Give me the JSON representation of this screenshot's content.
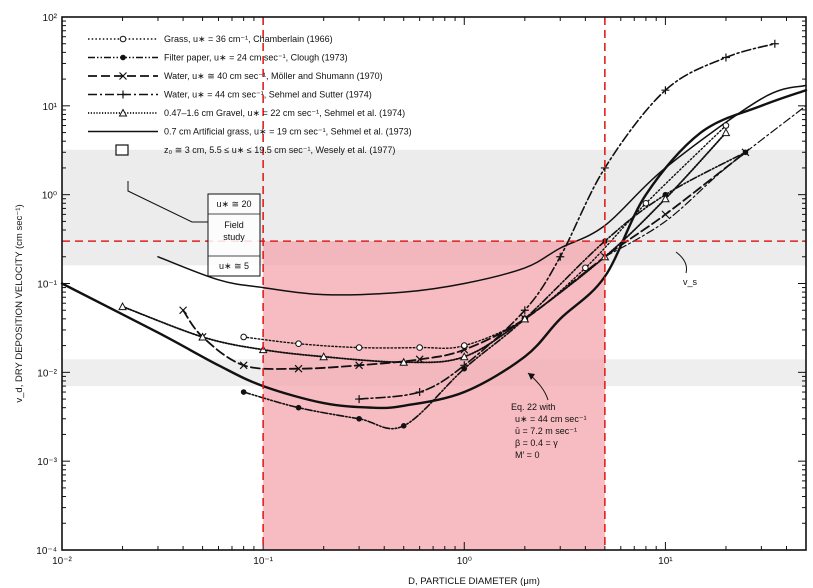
{
  "chart_data": {
    "type": "line",
    "xlabel": "D, PARTICLE DIAMETER (μm)",
    "ylabel": "v_d, DRY DEPOSITION VELOCITY (cm sec⁻¹)",
    "x_scale": "log",
    "y_scale": "log",
    "xlim": [
      0.01,
      50
    ],
    "ylim": [
      0.0001,
      100
    ],
    "x_ticks": [
      {
        "value": 0.01,
        "label": "10⁻²"
      },
      {
        "value": 0.1,
        "label": "10⁻¹"
      },
      {
        "value": 1,
        "label": "10⁰"
      },
      {
        "value": 10,
        "label": "10¹"
      }
    ],
    "y_ticks": [
      {
        "value": 0.0001,
        "label": "10⁻⁴"
      },
      {
        "value": 0.001,
        "label": "10⁻³"
      },
      {
        "value": 0.01,
        "label": "10⁻²"
      },
      {
        "value": 0.1,
        "label": "10⁻¹"
      },
      {
        "value": 1,
        "label": "10⁰"
      },
      {
        "value": 10,
        "label": "10¹"
      },
      {
        "value": 100,
        "label": "10²"
      }
    ],
    "legend_position": "top-left",
    "highlight": {
      "x_range": [
        0.1,
        5
      ],
      "y_max": 0.3,
      "color": "#f4a6ad",
      "line_color": "#e02020"
    },
    "series": [
      {
        "name": "Grass, u∗ = 36 cm⁻¹, Chamberlain (1966)",
        "style": "dotted",
        "marker": "circle",
        "x": [
          0.08,
          0.15,
          0.3,
          0.6,
          1.0,
          2.0,
          4.0,
          8.0,
          20.0
        ],
        "y": [
          0.025,
          0.021,
          0.019,
          0.019,
          0.02,
          0.04,
          0.15,
          0.8,
          6.0
        ]
      },
      {
        "name": "Filter paper, u∗ = 24 cm sec⁻¹, Clough (1973)",
        "style": "dashdotdot",
        "marker": "dot",
        "x": [
          0.08,
          0.15,
          0.3,
          0.5,
          1.0,
          2.0,
          5.0,
          10.0,
          25.0
        ],
        "y": [
          0.006,
          0.004,
          0.003,
          0.0025,
          0.011,
          0.04,
          0.3,
          1.0,
          3.0
        ]
      },
      {
        "name": "Water, u∗ ≅ 40 cm sec⁻¹, Möller and Shumann (1970)",
        "style": "dashed",
        "marker": "x",
        "x": [
          0.04,
          0.05,
          0.08,
          0.15,
          0.3,
          0.6,
          1.0,
          2.0,
          5.0,
          10.0,
          25.0
        ],
        "y": [
          0.05,
          0.025,
          0.012,
          0.011,
          0.012,
          0.014,
          0.018,
          0.04,
          0.2,
          0.6,
          3.0
        ]
      },
      {
        "name": "Water, u∗ = 44 cm sec⁻¹, Sehmel and Sutter (1974)",
        "style": "dashdot",
        "marker": "plus",
        "x": [
          0.3,
          0.6,
          1.0,
          2.0,
          3.0,
          5.0,
          10.0,
          20.0,
          35.0
        ],
        "y": [
          0.005,
          0.006,
          0.012,
          0.05,
          0.2,
          2.0,
          15.0,
          35.0,
          50.0
        ]
      },
      {
        "name": "0.47–1.6 cm Gravel, u∗ = 22 cm sec⁻¹, Sehmel et al. (1974)",
        "style": "dotted-dense",
        "marker": "triangle",
        "x": [
          0.02,
          0.05,
          0.1,
          0.2,
          0.5,
          1.0,
          2.0,
          5.0,
          10.0,
          20.0
        ],
        "y": [
          0.055,
          0.025,
          0.018,
          0.015,
          0.013,
          0.015,
          0.04,
          0.2,
          0.9,
          5.0
        ]
      },
      {
        "name": "0.7 cm Artificial grass, u∗ = 19 cm sec⁻¹, Sehmel et al. (1973)",
        "style": "solid",
        "marker": "none",
        "x": [
          0.03,
          0.06,
          0.1,
          0.2,
          0.5,
          1.0,
          2.0,
          3.0,
          5.0,
          10.0,
          30.0,
          50.0
        ],
        "y": [
          0.2,
          0.11,
          0.09,
          0.075,
          0.08,
          0.1,
          0.15,
          0.25,
          0.45,
          2.0,
          12.0,
          17.0
        ]
      },
      {
        "name": "Eq. 22",
        "style": "solid-bold",
        "marker": "none",
        "x": [
          0.01,
          0.03,
          0.06,
          0.1,
          0.2,
          0.35,
          0.5,
          1.0,
          2.0,
          3.0,
          5.0,
          8.0,
          15.0,
          30.0,
          50.0
        ],
        "y": [
          0.1,
          0.028,
          0.012,
          0.007,
          0.0045,
          0.004,
          0.0042,
          0.006,
          0.015,
          0.04,
          0.12,
          1.0,
          5.0,
          10.0,
          15.0
        ]
      },
      {
        "name": "v_s",
        "style": "dashdot-thin",
        "marker": "none",
        "x": [
          5.0,
          10.0,
          20.0,
          50.0
        ],
        "y": [
          0.2,
          0.5,
          2.0,
          10.0
        ]
      }
    ],
    "legend": [
      {
        "text": "Grass, u∗ = 36 cm⁻¹, Chamberlain (1966)",
        "style": "dotted",
        "marker": "circle"
      },
      {
        "text": "Filter paper, u∗ = 24 cm sec⁻¹, Clough (1973)",
        "style": "dashdotdot",
        "marker": "dot"
      },
      {
        "text": "Water, u∗ ≅ 40 cm sec⁻¹, Möller and Shumann (1970)",
        "style": "dashed",
        "marker": "x"
      },
      {
        "text": "Water, u∗ = 44 cm sec⁻¹, Sehmel and Sutter (1974)",
        "style": "dashdot",
        "marker": "plus"
      },
      {
        "text": "0.47–1.6 cm Gravel, u∗ = 22 cm sec⁻¹, Sehmel et al. (1974)",
        "style": "dotted-dense",
        "marker": "triangle"
      },
      {
        "text": "0.7 cm Artificial grass, u∗ = 19 cm sec⁻¹, Sehmel et al. (1973)",
        "style": "solid",
        "marker": "none"
      },
      {
        "text": "z₀ ≅ 3 cm, 5.5 ≤ u∗ ≤ 19.5 cm sec⁻¹, Wesely et al. (1977)",
        "style": "box",
        "marker": "square"
      }
    ],
    "annotations": {
      "field_study": [
        "u∗ ≅ 20",
        "Field",
        "study",
        "u∗ ≅ 5"
      ],
      "eq22": [
        "Eq. 22 with",
        "u∗ = 44 cm sec⁻¹",
        "ū = 7.2 m sec⁻¹",
        "β = 0.4 = γ",
        "M′ = 0"
      ],
      "vs_label": "v_s"
    }
  }
}
